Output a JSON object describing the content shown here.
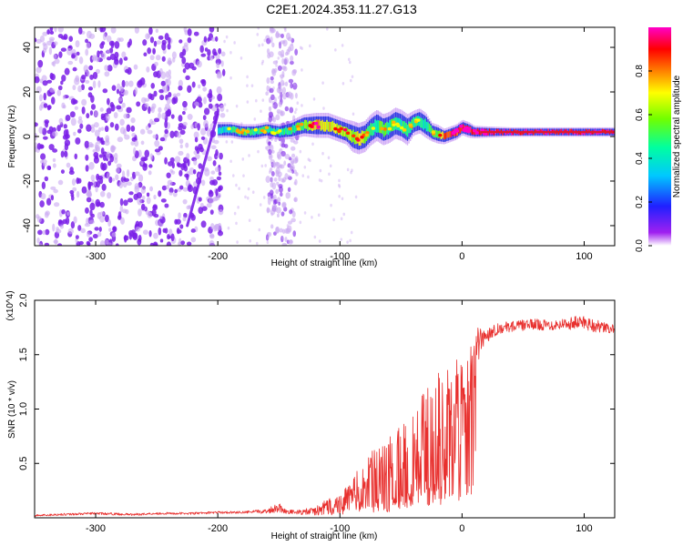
{
  "title": "C2E1.2024.353.11.27.G13",
  "colors": {
    "snr_line": "#e8302e",
    "spectro_dots": "#7a1fe8",
    "spectro_faint": "#c9a8f2",
    "ridge_core": "#e0182a"
  },
  "chart_data": [
    {
      "type": "heatmap",
      "title": "C2E1.2024.353.11.27.G13",
      "xlabel": "Height of straight line (km)",
      "ylabel": "Frequency (Hz)",
      "xlim": [
        -350,
        125
      ],
      "ylim": [
        -49,
        49
      ],
      "xticks": [
        -300,
        -200,
        -100,
        0,
        100
      ],
      "xtick_labels": [
        "-300",
        "-200",
        "-100",
        "0",
        "100"
      ],
      "yticks": [
        40,
        20,
        0,
        -20,
        -40
      ],
      "ytick_labels": [
        "40",
        "20",
        "0",
        "-20",
        "-40"
      ],
      "colorbar": {
        "label": "Normalized spectral amplitude",
        "range": [
          0,
          1
        ],
        "ticks": [
          0.0,
          0.2,
          0.4,
          0.6,
          0.8
        ],
        "tick_labels": [
          "0.0",
          "0.2",
          "0.4",
          "0.6",
          "0.8"
        ],
        "colormap": "rainbow (violet at 0 to magenta at 1)"
      },
      "ridge": {
        "x": [
          -200,
          -190,
          -180,
          -170,
          -160,
          -150,
          -140,
          -130,
          -120,
          -110,
          -100,
          -95,
          -90,
          -85,
          -80,
          -75,
          -70,
          -65,
          -60,
          -55,
          -50,
          -45,
          -40,
          -35,
          -30,
          -25,
          -20,
          -15,
          -10,
          -5,
          0,
          5,
          10,
          20,
          40,
          60,
          80,
          100,
          125
        ],
        "y": [
          3,
          3,
          2,
          2,
          3,
          2,
          3,
          5,
          5,
          5,
          3,
          2,
          0,
          -1,
          0,
          3,
          5,
          3,
          4,
          6,
          5,
          3,
          6,
          7,
          5,
          2,
          1,
          0,
          1,
          2,
          4,
          3,
          2,
          2,
          2,
          2,
          2,
          2,
          2
        ],
        "amplitude": [
          0.3,
          0.45,
          0.5,
          0.45,
          0.5,
          0.4,
          0.5,
          0.55,
          0.75,
          0.7,
          0.65,
          0.65,
          0.6,
          0.7,
          0.55,
          0.5,
          0.5,
          0.55,
          0.5,
          0.5,
          0.45,
          0.45,
          0.5,
          0.45,
          0.45,
          0.5,
          0.55,
          0.8,
          0.9,
          0.85,
          0.85,
          0.85,
          0.9,
          0.95,
          0.95,
          0.95,
          0.95,
          0.95,
          0.95
        ],
        "half_width_hz": [
          2.5,
          2.5,
          2.5,
          2.5,
          2.5,
          2.5,
          3,
          3.5,
          4,
          4,
          4,
          4,
          5,
          5,
          5,
          5,
          5,
          5,
          5,
          5,
          5,
          5,
          4,
          4,
          4,
          3,
          3,
          2.5,
          2.5,
          2.5,
          2.5,
          2.5,
          2,
          1.8,
          1.5,
          1.5,
          1.5,
          1.5,
          1.5
        ]
      },
      "noise_region": {
        "x_range": [
          -350,
          -195
        ],
        "faint_column_x": [
          -160,
          -135
        ],
        "faint_scatter_x": [
          -195,
          -85
        ],
        "streak": {
          "x": [
            -225,
            -200
          ],
          "y": [
            -40,
            10
          ]
        }
      }
    },
    {
      "type": "line",
      "xlabel": "Height of straight line (km)",
      "ylabel": "SNR (10 * v/v)",
      "y_multiplier": "(x10^4)",
      "xlim": [
        -350,
        125
      ],
      "ylim": [
        0,
        2.0
      ],
      "xticks": [
        -300,
        -200,
        -100,
        0,
        100
      ],
      "xtick_labels": [
        "-300",
        "-200",
        "-100",
        "0",
        "100"
      ],
      "yticks": [
        0.5,
        1.0,
        1.5,
        2.0
      ],
      "ytick_labels": [
        "0.5",
        "1.0",
        "1.5",
        "2.0"
      ],
      "series": [
        {
          "x": [
            -350,
            -330,
            -300,
            -270,
            -250,
            -220,
            -200,
            -180,
            -160,
            -150,
            -145,
            -135,
            -120,
            -110,
            -100,
            -90,
            -80,
            -70,
            -60,
            -50,
            -40,
            -30,
            -20,
            -15,
            -10,
            -5,
            0,
            5,
            8,
            10,
            12,
            15,
            20,
            25,
            30,
            40,
            50,
            60,
            70,
            80,
            90,
            100,
            110,
            125
          ],
          "y": [
            0.02,
            0.03,
            0.04,
            0.03,
            0.04,
            0.04,
            0.05,
            0.05,
            0.06,
            0.1,
            0.06,
            0.05,
            0.06,
            0.1,
            0.12,
            0.2,
            0.3,
            0.35,
            0.4,
            0.45,
            0.55,
            0.65,
            0.75,
            0.8,
            0.9,
            1.0,
            1.05,
            1.15,
            1.35,
            1.45,
            1.55,
            1.62,
            1.68,
            1.72,
            1.74,
            1.76,
            1.77,
            1.78,
            1.77,
            1.78,
            1.79,
            1.8,
            1.76,
            1.73
          ],
          "y_noise": [
            0.01,
            0.01,
            0.01,
            0.01,
            0.01,
            0.01,
            0.01,
            0.01,
            0.02,
            0.05,
            0.02,
            0.02,
            0.04,
            0.08,
            0.1,
            0.15,
            0.25,
            0.3,
            0.35,
            0.4,
            0.45,
            0.55,
            0.6,
            0.55,
            0.55,
            0.5,
            0.35,
            0.35,
            0.25,
            0.3,
            0.2,
            0.12,
            0.08,
            0.06,
            0.05,
            0.05,
            0.05,
            0.05,
            0.05,
            0.05,
            0.06,
            0.07,
            0.06,
            0.04
          ]
        }
      ]
    }
  ]
}
